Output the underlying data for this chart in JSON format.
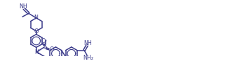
{
  "bg_color": "#ffffff",
  "line_color": "#3a3a8a",
  "line_width": 1.1,
  "font_size": 5.8,
  "fig_width": 3.25,
  "fig_height": 0.88,
  "dpi": 100,
  "xlim": [
    0,
    13.0
  ],
  "ylim": [
    0,
    3.6
  ]
}
